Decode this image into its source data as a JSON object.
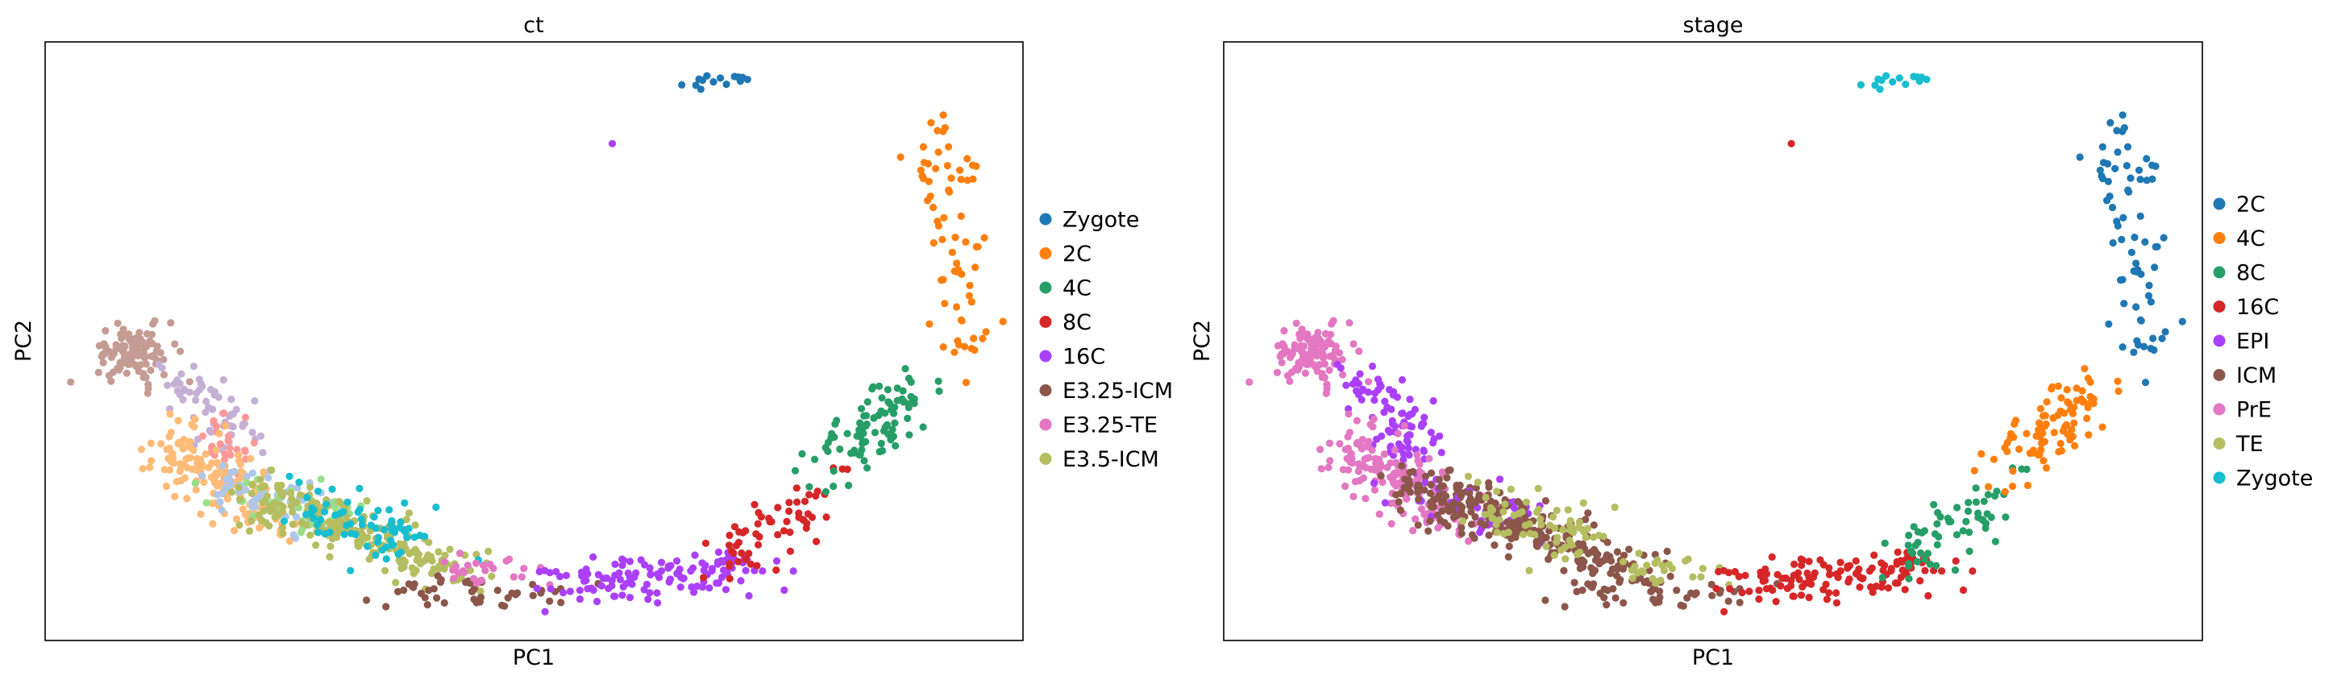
{
  "chart_data": {
    "type": "scatter",
    "xlim": [
      0,
      100
    ],
    "ylim": [
      0,
      100
    ],
    "grid": false,
    "ticks": false,
    "legend_placement": "right-outside",
    "panels": [
      {
        "title": "ct",
        "xlabel": "PC1",
        "ylabel": "PC2",
        "color_by": "ct",
        "legend": [
          {
            "label": "Zygote",
            "color": "#1f77b4"
          },
          {
            "label": "2C",
            "color": "#ff7f0e"
          },
          {
            "label": "4C",
            "color": "#279e68"
          },
          {
            "label": "8C",
            "color": "#d62728"
          },
          {
            "label": "16C",
            "color": "#aa40fc"
          },
          {
            "label": "E3.25-ICM",
            "color": "#8c564b"
          },
          {
            "label": "E3.25-TE",
            "color": "#e377c2"
          },
          {
            "label": "E3.5-ICM",
            "color": "#b5bd61"
          }
        ]
      },
      {
        "title": "stage",
        "xlabel": "PC1",
        "ylabel": "PC2",
        "color_by": "stage",
        "legend": [
          {
            "label": "2C",
            "color": "#1f77b4"
          },
          {
            "label": "4C",
            "color": "#ff7f0e"
          },
          {
            "label": "8C",
            "color": "#279e68"
          },
          {
            "label": "16C",
            "color": "#d62728"
          },
          {
            "label": "EPI",
            "color": "#aa40fc"
          },
          {
            "label": "ICM",
            "color": "#8c564b"
          },
          {
            "label": "PrE",
            "color": "#e377c2"
          },
          {
            "label": "TE",
            "color": "#b5bd61"
          },
          {
            "label": "Zygote",
            "color": "#17becf"
          }
        ]
      }
    ],
    "point_groups": [
      {
        "ct_color": "#c49c94",
        "stage": "PrE",
        "n": 110,
        "from": [
          9,
          48
        ],
        "to": [
          9,
          48
        ],
        "sx": 2.0,
        "sy": 2.5
      },
      {
        "ct_color": "#c5b0d5",
        "stage": "EPI",
        "n": 60,
        "from": [
          14,
          44
        ],
        "to": [
          20,
          34
        ],
        "sx": 1.8,
        "sy": 2.0
      },
      {
        "ct_color": "#ff9896",
        "stage": "EPI",
        "n": 25,
        "from": [
          17,
          36
        ],
        "to": [
          20,
          30
        ],
        "sx": 1.5,
        "sy": 2.0
      },
      {
        "ct_color": "#ffbb78",
        "stage": "PrE",
        "n": 160,
        "from": [
          12,
          33
        ],
        "to": [
          24,
          20
        ],
        "sx": 2.0,
        "sy": 2.5
      },
      {
        "ct_color": "#aec7e8",
        "stage": "ICM",
        "n": 60,
        "from": [
          18,
          27
        ],
        "to": [
          28,
          20
        ],
        "sx": 2.0,
        "sy": 2.0
      },
      {
        "ct_color": "#98df8a",
        "stage": "EPI",
        "n": 40,
        "from": [
          20,
          26
        ],
        "to": [
          30,
          19
        ],
        "sx": 2.0,
        "sy": 2.0
      },
      {
        "ct": "E3.5-ICM",
        "stage": "ICM",
        "n": 220,
        "from": [
          22,
          24
        ],
        "to": [
          42,
          12
        ],
        "sx": 2.5,
        "sy": 2.0
      },
      {
        "ct_color": "#17becf",
        "stage": "TE",
        "n": 70,
        "from": [
          25,
          24
        ],
        "to": [
          40,
          15
        ],
        "sx": 2.0,
        "sy": 2.2
      },
      {
        "ct": "E3.25-ICM",
        "stage": "ICM",
        "n": 45,
        "from": [
          36,
          9
        ],
        "to": [
          52,
          7
        ],
        "sx": 2.5,
        "sy": 1.5
      },
      {
        "ct": "E3.25-TE",
        "stage": "TE",
        "n": 25,
        "from": [
          40,
          12
        ],
        "to": [
          50,
          11
        ],
        "sx": 2.0,
        "sy": 1.5
      },
      {
        "ct": "16C",
        "stage": "16C",
        "n": 130,
        "from": [
          52,
          10
        ],
        "to": [
          72,
          12
        ],
        "sx": 3.0,
        "sy": 1.8
      },
      {
        "ct": "16C",
        "stage": "16C",
        "n": 1,
        "from": [
          58,
          83
        ],
        "to": [
          58,
          83
        ],
        "sx": 0,
        "sy": 0
      },
      {
        "ct": "8C",
        "stage": "8C",
        "n": 60,
        "from": [
          70,
          13
        ],
        "to": [
          79,
          25
        ],
        "sx": 2.0,
        "sy": 3.0
      },
      {
        "ct": "4C",
        "stage": "4C",
        "n": 90,
        "from": [
          80,
          28
        ],
        "to": [
          88,
          42
        ],
        "sx": 2.0,
        "sy": 3.0
      },
      {
        "ct": "2C",
        "stage": "2C",
        "n": 70,
        "from": [
          92,
          85
        ],
        "to": [
          94,
          47
        ],
        "sx": 1.8,
        "sy": 3.0
      },
      {
        "ct": "Zygote",
        "stage": "Zygote",
        "n": 15,
        "from": [
          66,
          93
        ],
        "to": [
          72,
          94
        ],
        "sx": 0.8,
        "sy": 0.8
      }
    ]
  }
}
